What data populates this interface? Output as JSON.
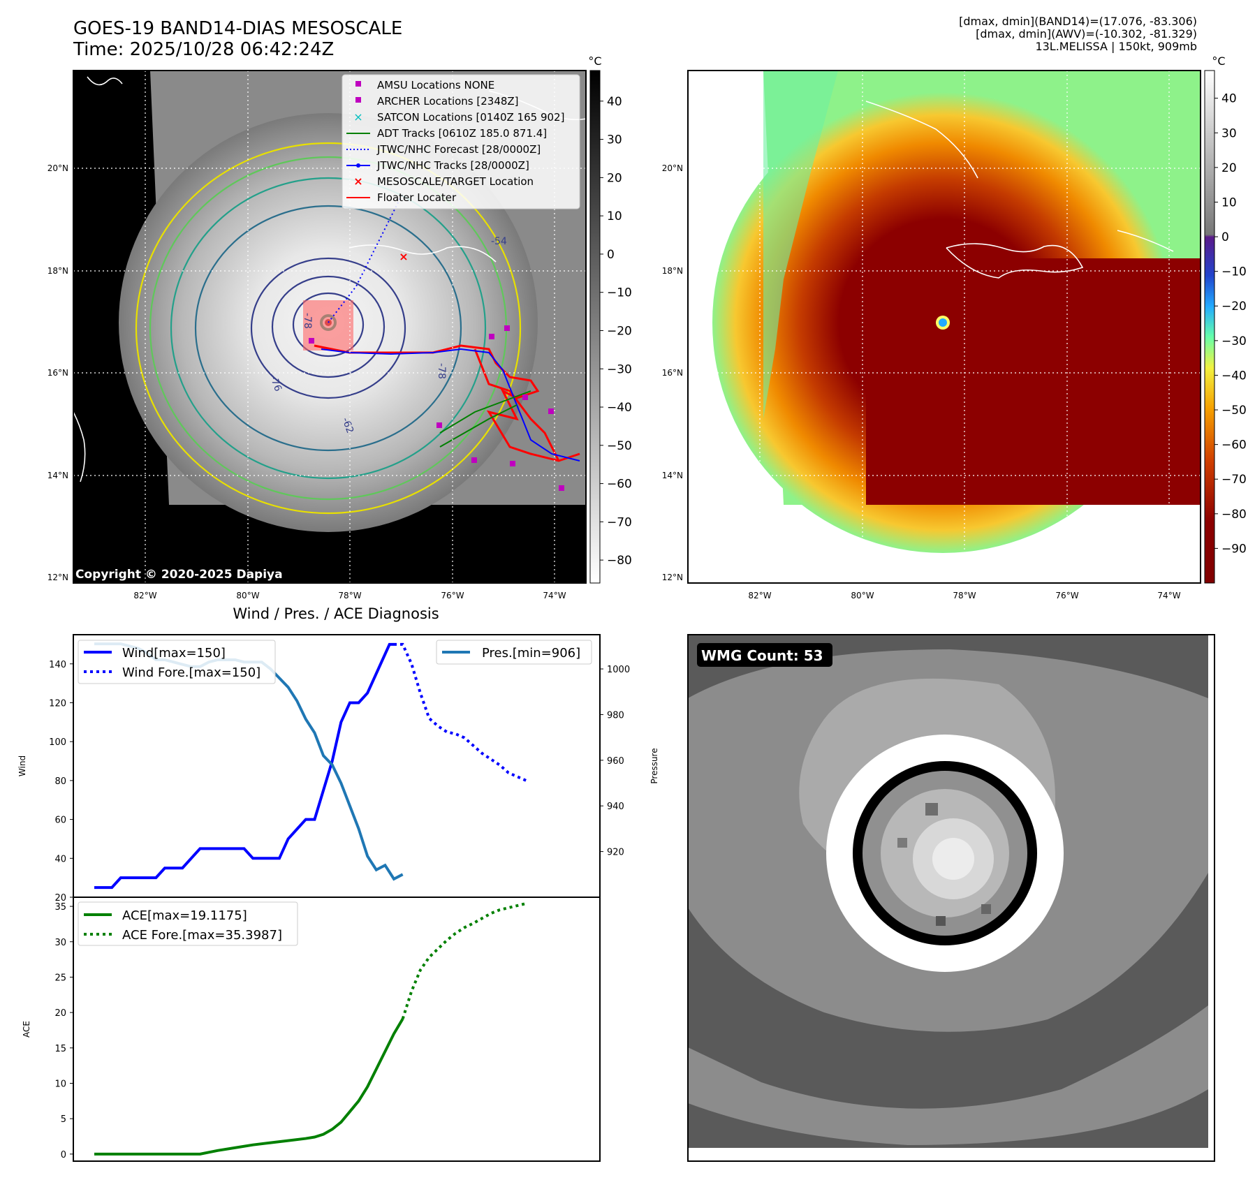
{
  "header": {
    "title_line1": "GOES-19 BAND14-DIAS MESOSCALE",
    "title_line2": "Time: 2025/10/28 06:42:24Z",
    "info_line1": "[dmax, dmin](BAND14)=(17.076, -83.306)",
    "info_line2": "[dmax, dmin](AWV)=(-10.302, -81.329)",
    "info_line3": "13L.MELISSA | 150kt, 909mb"
  },
  "maps": {
    "lat_labels": [
      "20°N",
      "18°N",
      "16°N",
      "14°N",
      "12°N"
    ],
    "lon_labels": [
      "82°W",
      "80°W",
      "78°W",
      "76°W",
      "74°W"
    ],
    "copyright": "Copyright © 2020-2025 Dapiya",
    "contour_labels": [
      "-54",
      "-76",
      "-78",
      "-78",
      "-62"
    ],
    "legend": [
      {
        "label": "AMSU Locations NONE",
        "marker": "square",
        "color": "#bf00bf"
      },
      {
        "label": "ARCHER Locations [2348Z]",
        "marker": "square",
        "color": "#bf00bf"
      },
      {
        "label": "SATCON Locations [0140Z 165 902]",
        "marker": "x",
        "color": "#00bfbf"
      },
      {
        "label": "ADT Tracks [0610Z 185.0 871.4]",
        "marker": "line",
        "color": "#008000"
      },
      {
        "label": "JTWC/NHC Forecast [28/0000Z]",
        "marker": "dotted",
        "color": "#0000ff"
      },
      {
        "label": "JTWC/NHC Tracks [28/0000Z]",
        "marker": "line-dot",
        "color": "#0000ff"
      },
      {
        "label": "MESOSCALE/TARGET Location",
        "marker": "x",
        "color": "#ff0000"
      },
      {
        "label": "Floater Locater",
        "marker": "line",
        "color": "#ff0000"
      }
    ],
    "gray_colorbar": {
      "unit": "°C",
      "ticks": [
        40,
        30,
        20,
        10,
        0,
        -10,
        -20,
        -30,
        -40,
        -50,
        -60,
        -70,
        -80
      ],
      "range": [
        48,
        -86
      ]
    },
    "color_colorbar": {
      "unit": "°C",
      "ticks": [
        40,
        30,
        20,
        10,
        0,
        -10,
        -20,
        -30,
        -40,
        -50,
        -60,
        -70,
        -80,
        -90
      ],
      "range": [
        48,
        -100
      ]
    }
  },
  "wmg": {
    "label": "WMG Count: 53"
  },
  "colors": {
    "wind": "#0000ff",
    "pressure": "#1f77b4",
    "ace": "#008000"
  },
  "chart_data": [
    {
      "type": "line",
      "title": "Wind / Pres. / ACE Diagnosis",
      "ylabel": "Wind",
      "ylim": [
        20,
        155
      ],
      "yticks": [
        20,
        40,
        60,
        80,
        100,
        120,
        140
      ],
      "y2label": "Pressure",
      "y2lim": [
        900,
        1015
      ],
      "y2ticks": [
        920,
        940,
        960,
        980,
        1000
      ],
      "xlim": [
        0,
        55
      ],
      "series": [
        {
          "name": "Wind[max=150]",
          "axis": "left",
          "style": "solid",
          "x": [
            0,
            1,
            2,
            3,
            3.5,
            4,
            5,
            6,
            7,
            8,
            9,
            10,
            11,
            12,
            13,
            14,
            15,
            16,
            17,
            18,
            19,
            20,
            21,
            22,
            23,
            24,
            25,
            26,
            27,
            28,
            29,
            30,
            31,
            32,
            33,
            33.5,
            34
          ],
          "y": [
            25,
            25,
            25,
            30,
            30,
            30,
            30,
            30,
            30,
            35,
            35,
            35,
            40,
            45,
            45,
            45,
            45,
            45,
            45,
            40,
            40,
            40,
            40,
            50,
            55,
            60,
            60,
            75,
            90,
            110,
            120,
            120,
            125,
            135,
            145,
            150,
            150
          ]
        },
        {
          "name": "Wind Fore.[max=150]",
          "axis": "left",
          "style": "dotted",
          "x": [
            34,
            35,
            36,
            37,
            38,
            39,
            40,
            41,
            42,
            43,
            44,
            45,
            46,
            47,
            48,
            49
          ],
          "y": [
            150,
            150,
            140,
            125,
            112,
            108,
            105,
            104,
            102,
            98,
            94,
            91,
            88,
            84,
            82,
            80
          ]
        },
        {
          "name": "Pres.[min=906]",
          "axis": "right",
          "style": "solid",
          "x": [
            0,
            1,
            2,
            3,
            4,
            5,
            6,
            7,
            8,
            9,
            10,
            11,
            12,
            13,
            14,
            15,
            16,
            17,
            18,
            19,
            20,
            21,
            22,
            23,
            24,
            25,
            26,
            27,
            28,
            29,
            30,
            31,
            32,
            33,
            34,
            35
          ],
          "y": [
            1011,
            1011,
            1011,
            1011,
            1010,
            1009,
            1007,
            1004,
            1004,
            1003,
            1002,
            1001,
            1001,
            1003,
            1004,
            1004,
            1004,
            1003,
            1003,
            1003,
            1000,
            996,
            992,
            986,
            978,
            972,
            962,
            958,
            950,
            940,
            930,
            918,
            912,
            914,
            908,
            910
          ]
        }
      ]
    },
    {
      "type": "line",
      "ylabel": "ACE",
      "ylim": [
        -1,
        35.5
      ],
      "yticks": [
        0,
        5,
        10,
        15,
        20,
        25,
        30,
        35
      ],
      "xlim": [
        0,
        55
      ],
      "series": [
        {
          "name": "ACE[max=19.1175]",
          "style": "solid",
          "x": [
            0,
            2,
            4,
            6,
            8,
            10,
            12,
            14,
            16,
            18,
            20,
            22,
            24,
            25,
            26,
            27,
            28,
            29,
            30,
            31,
            32,
            33,
            34,
            35
          ],
          "y": [
            0,
            0,
            0,
            0,
            0,
            0,
            0,
            0.5,
            0.9,
            1.3,
            1.6,
            1.9,
            2.2,
            2.4,
            2.8,
            3.5,
            4.5,
            6,
            7.5,
            9.5,
            12,
            14.5,
            17,
            19.1
          ]
        },
        {
          "name": "ACE Fore.[max=35.3987]",
          "style": "dotted",
          "x": [
            35,
            36,
            37,
            38,
            39,
            40,
            41,
            42,
            43,
            44,
            45,
            46,
            47,
            48,
            49
          ],
          "y": [
            19.1,
            23,
            26,
            27.8,
            29,
            30.2,
            31.2,
            32,
            32.6,
            33.3,
            34,
            34.5,
            34.8,
            35.1,
            35.4
          ]
        }
      ]
    }
  ]
}
